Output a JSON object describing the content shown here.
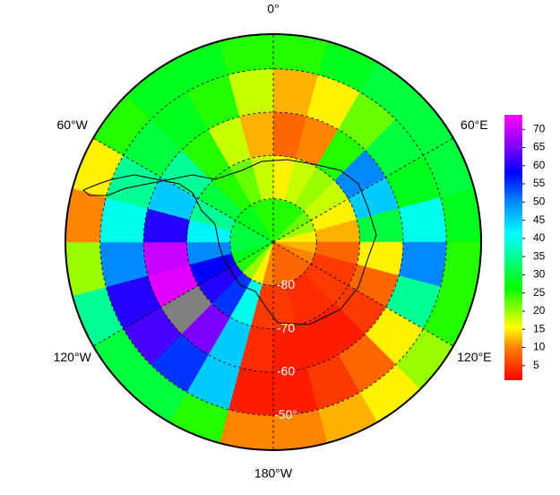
{
  "chart_data": {
    "type": "polar-heatmap",
    "lon_labels": [
      {
        "value": 0,
        "label": "0°"
      },
      {
        "value": 60,
        "label": "60°E"
      },
      {
        "value": 120,
        "label": "120°E"
      },
      {
        "value": 180,
        "label": "180°W"
      },
      {
        "value": -120,
        "label": "120°W"
      },
      {
        "value": -60,
        "label": "60°W"
      }
    ],
    "lat_ticks": [
      {
        "value": -80,
        "label": "-80"
      },
      {
        "value": -70,
        "label": "-70"
      },
      {
        "value": -60,
        "label": "-60"
      },
      {
        "value": -50,
        "label": "-50°"
      }
    ],
    "lat_lim": [
      -90,
      -42
    ],
    "lat_edges": [
      -90,
      -80,
      -70,
      -60,
      -50,
      -42
    ],
    "lon_edges": [
      0,
      15,
      30,
      45,
      60,
      75,
      90,
      105,
      120,
      135,
      150,
      165,
      180,
      195,
      210,
      225,
      240,
      255,
      270,
      285,
      300,
      315,
      330,
      345,
      360
    ],
    "values": [
      [
        25,
        15,
        8,
        12,
        25
      ],
      [
        25,
        18,
        10,
        15,
        28
      ],
      [
        25,
        20,
        25,
        22,
        30
      ],
      [
        22,
        18,
        50,
        30,
        30
      ],
      [
        20,
        15,
        45,
        28,
        30
      ],
      [
        15,
        12,
        30,
        40,
        28
      ],
      [
        12,
        8,
        15,
        50,
        25
      ],
      [
        10,
        5,
        8,
        35,
        25
      ],
      [
        8,
        5,
        5,
        15,
        20
      ],
      [
        8,
        4,
        3,
        8,
        15
      ],
      [
        8,
        4,
        3,
        5,
        12
      ],
      [
        8,
        5,
        3,
        3,
        10
      ],
      [
        10,
        5,
        4,
        3,
        10
      ],
      [
        15,
        40,
        45,
        45,
        25
      ],
      [
        20,
        55,
        65,
        55,
        30
      ],
      [
        25,
        60,
        null,
        62,
        30
      ],
      [
        28,
        58,
        72,
        60,
        35
      ],
      [
        30,
        50,
        70,
        50,
        20
      ],
      [
        30,
        42,
        60,
        40,
        10
      ],
      [
        30,
        35,
        45,
        35,
        15
      ],
      [
        28,
        30,
        35,
        30,
        25
      ],
      [
        28,
        25,
        25,
        28,
        28
      ],
      [
        25,
        22,
        18,
        25,
        28
      ],
      [
        25,
        18,
        12,
        18,
        25
      ]
    ],
    "missing_color": "#808080",
    "colorbar": {
      "lim": [
        1,
        74
      ],
      "ticks": [
        5,
        10,
        15,
        20,
        25,
        30,
        35,
        40,
        45,
        50,
        55,
        60,
        65,
        70
      ]
    }
  }
}
